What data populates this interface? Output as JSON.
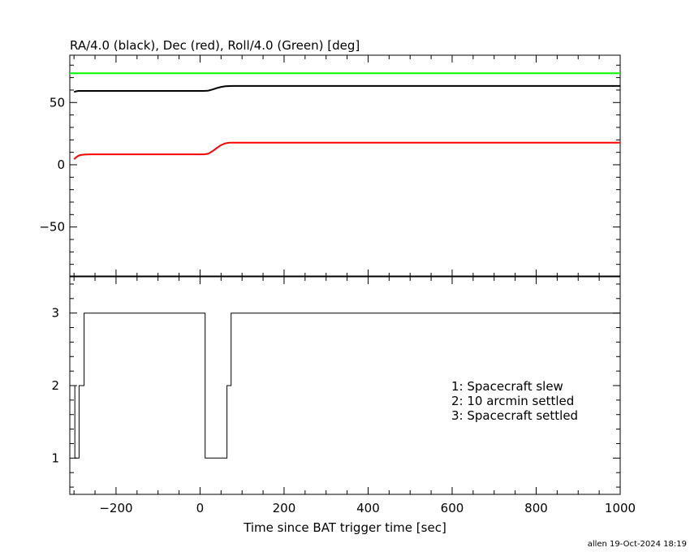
{
  "chart_data": [
    {
      "type": "line",
      "title": "RA/4.0 (black), Dec (red), Roll/4.0 (Green) [deg]",
      "xlim": [
        -310,
        1000
      ],
      "ylim": [
        -90,
        88
      ],
      "y_ticks": [
        -50,
        0,
        50
      ],
      "grid": false,
      "series": [
        {
          "name": "RA/4.0",
          "color": "#000000",
          "x": [
            -300,
            -295,
            -290,
            10,
            20,
            30,
            40,
            50,
            60,
            70,
            80,
            100,
            200,
            400,
            600,
            800,
            1000
          ],
          "y": [
            58.5,
            59.0,
            59.3,
            59.3,
            59.6,
            60.5,
            61.6,
            62.5,
            63.0,
            63.2,
            63.3,
            63.3,
            63.3,
            63.3,
            63.3,
            63.3,
            63.3
          ]
        },
        {
          "name": "Dec",
          "color": "#ff0000",
          "x": [
            -300,
            -295,
            -290,
            -285,
            -275,
            -260,
            10,
            20,
            30,
            40,
            50,
            60,
            70,
            80,
            100,
            200,
            400,
            600,
            800,
            1000
          ],
          "y": [
            4.5,
            6.0,
            7.2,
            7.8,
            8.2,
            8.4,
            8.4,
            9.0,
            11.0,
            13.5,
            15.8,
            17.2,
            17.7,
            17.8,
            17.8,
            17.8,
            17.8,
            17.8,
            17.8,
            17.8
          ]
        },
        {
          "name": "Roll/4.0",
          "color": "#00ff00",
          "x": [
            -310,
            1000
          ],
          "y": [
            73.5,
            73.5
          ]
        }
      ]
    },
    {
      "type": "line",
      "xlabel": "Time since BAT trigger time [sec]",
      "xlim": [
        -310,
        1000
      ],
      "ylim": [
        0.5,
        3.5
      ],
      "x_ticks": [
        -200,
        0,
        200,
        400,
        600,
        800,
        1000
      ],
      "y_ticks": [
        1,
        2,
        3
      ],
      "grid": false,
      "legend": [
        "1: Spacecraft slew",
        "2: 10 arcmin settled",
        "3: Spacecraft settled"
      ],
      "legend_position": "right",
      "series": [
        {
          "step": true,
          "color": "#000000",
          "x": [
            -310,
            -298,
            -288,
            -276,
            12,
            64,
            74,
            1000
          ],
          "y": [
            2,
            1,
            2,
            3,
            1,
            2,
            3,
            3
          ]
        }
      ]
    }
  ],
  "footer": "allen 19-Oct-2024 18:19"
}
